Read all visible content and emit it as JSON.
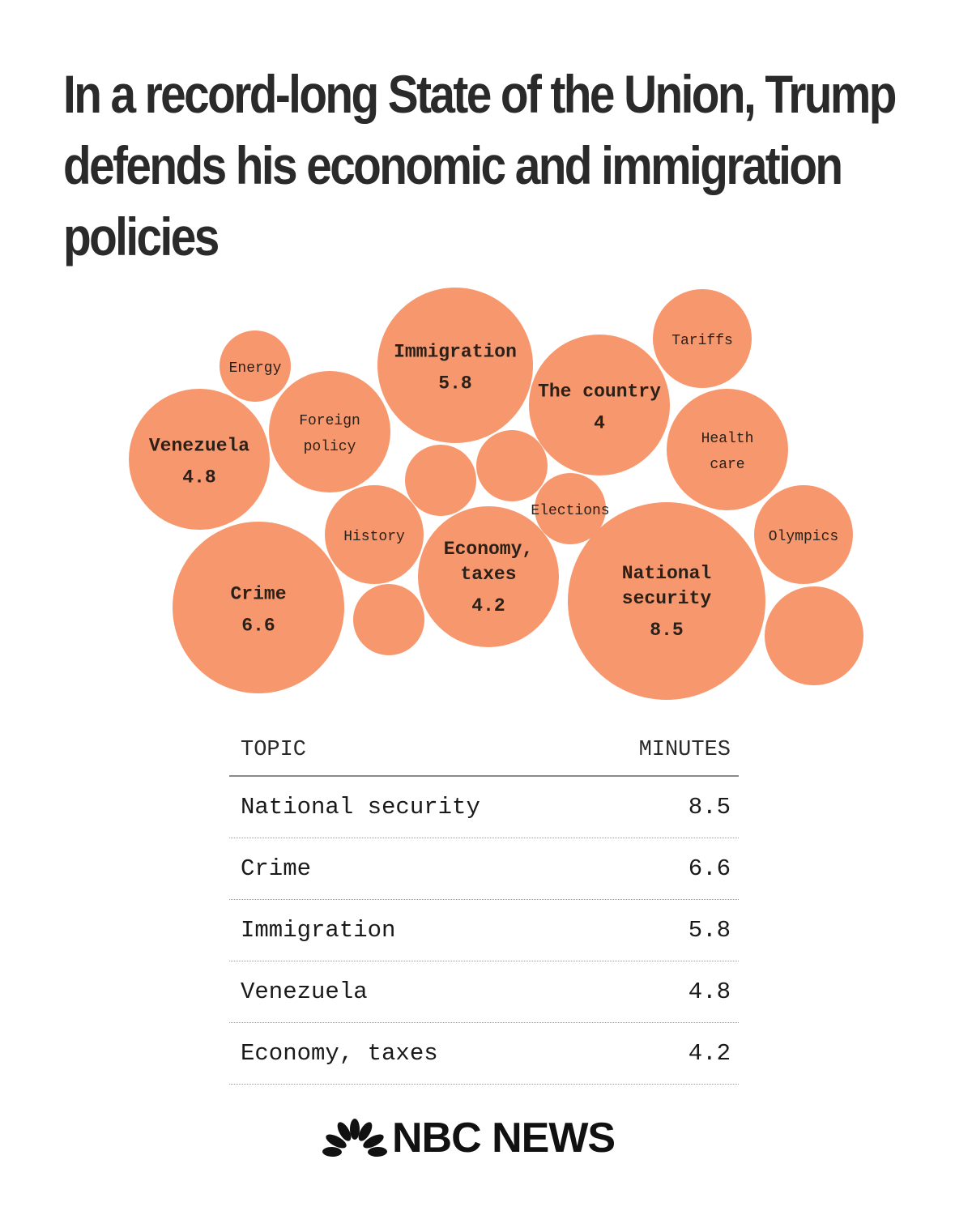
{
  "title": "In a record-long State of the Union, Trump defends his economic and immigration policies",
  "colors": {
    "bubble": "#f7976d",
    "text": "#2a2a2a"
  },
  "chart_data": {
    "type": "bubble",
    "title": "In a record-long State of the Union, Trump defends his economic and immigration policies",
    "unit": "minutes",
    "bubbles": [
      {
        "label": "National security",
        "lines": [
          "National",
          "security"
        ],
        "value": 8.5
      },
      {
        "label": "Crime",
        "lines": [
          "Crime"
        ],
        "value": 6.6
      },
      {
        "label": "Immigration",
        "lines": [
          "Immigration"
        ],
        "value": 5.8
      },
      {
        "label": "Venezuela",
        "lines": [
          "Venezuela"
        ],
        "value": 4.8
      },
      {
        "label": "Economy, taxes",
        "lines": [
          "Economy,",
          "taxes"
        ],
        "value": 4.2
      },
      {
        "label": "The country",
        "lines": [
          "The country"
        ],
        "value": 4
      },
      {
        "label": "Foreign policy",
        "lines": [
          "Foreign",
          "policy"
        ],
        "value": null
      },
      {
        "label": "Health care",
        "lines": [
          "Health",
          "care"
        ],
        "value": null
      },
      {
        "label": "Olympics",
        "lines": [
          "Olympics"
        ],
        "value": null
      },
      {
        "label": "Tariffs",
        "lines": [
          "Tariffs"
        ],
        "value": null
      },
      {
        "label": "History",
        "lines": [
          "History"
        ],
        "value": null
      },
      {
        "label": "Energy",
        "lines": [
          "Energy"
        ],
        "value": null
      },
      {
        "label": "Elections",
        "lines": [
          "Elections"
        ],
        "value": null
      },
      {
        "label": "",
        "lines": [],
        "value": null
      },
      {
        "label": "",
        "lines": [],
        "value": null
      },
      {
        "label": "",
        "lines": [],
        "value": null
      },
      {
        "label": "",
        "lines": [],
        "value": null
      }
    ]
  },
  "table": {
    "headers": {
      "topic": "TOPIC",
      "minutes": "MINUTES"
    },
    "rows": [
      {
        "topic": "National security",
        "minutes": "8.5"
      },
      {
        "topic": "Crime",
        "minutes": "6.6"
      },
      {
        "topic": "Immigration",
        "minutes": "5.8"
      },
      {
        "topic": "Venezuela",
        "minutes": "4.8"
      },
      {
        "topic": "Economy, taxes",
        "minutes": "4.2"
      }
    ]
  },
  "footer": {
    "logo_text": "NBC NEWS",
    "logo_icon": "peacock-icon"
  }
}
